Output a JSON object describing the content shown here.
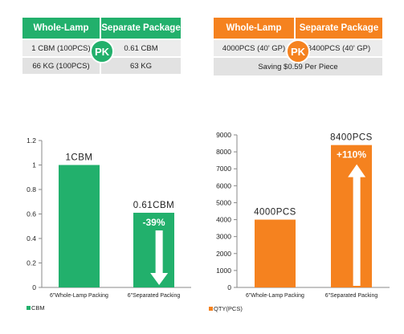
{
  "left_table": {
    "header_left": "Whole-Lamp",
    "header_right": "Separate Package",
    "badge": "PK",
    "row1_left": "1 CBM (100PCS)",
    "row1_right": "0.61 CBM",
    "row2_left": "66 KG (100PCS)",
    "row2_right": "63 KG",
    "color": "#22b06c"
  },
  "right_table": {
    "header_left": "Whole-Lamp",
    "header_right": "Separate Package",
    "badge": "PK",
    "row1_left": "4000PCS (40' GP)",
    "row1_right": "8400PCS (40' GP)",
    "row2": "Saving $0.59 Per Piece",
    "color": "#f5821f"
  },
  "chart_data": [
    {
      "type": "bar",
      "categories": [
        "6\"Whole-Lamp Packing",
        "6\"Separated Packing"
      ],
      "series": [
        {
          "name": "CBM",
          "values": [
            1,
            0.61
          ]
        }
      ],
      "data_labels": [
        "1CBM",
        "0.61CBM"
      ],
      "change_label": "-39%",
      "change_direction": "down",
      "ylim": [
        0,
        1.2
      ],
      "yticks": [
        "0",
        "0.2",
        "0.4",
        "0.6",
        "0.8",
        "1",
        "1.2"
      ],
      "legend_position": "bottom-left",
      "color": "#22b06c"
    },
    {
      "type": "bar",
      "categories": [
        "6\"Whole-Lamp Packing",
        "6\"Separated Packing"
      ],
      "series": [
        {
          "name": "QTY(PCS)",
          "values": [
            4000,
            8400
          ]
        }
      ],
      "data_labels": [
        "4000PCS",
        "8400PCS"
      ],
      "change_label": "+110%",
      "change_direction": "up",
      "ylim": [
        0,
        9000
      ],
      "yticks": [
        "0",
        "1000",
        "2000",
        "3000",
        "4000",
        "5000",
        "6000",
        "7000",
        "8000",
        "9000"
      ],
      "legend_position": "bottom-left",
      "color": "#f5821f"
    }
  ]
}
